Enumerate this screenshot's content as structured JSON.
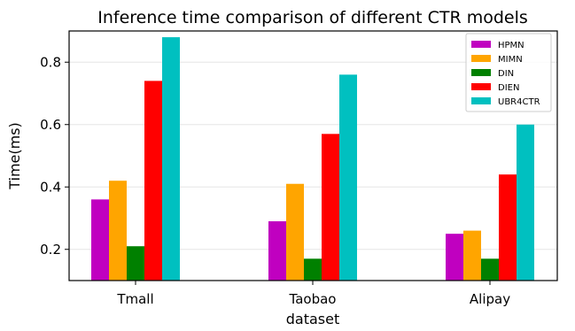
{
  "chart_data": {
    "type": "bar",
    "title": "Inference time comparison of different CTR models",
    "xlabel": "dataset",
    "ylabel": "Time(ms)",
    "categories": [
      "Tmall",
      "Taobao",
      "Alipay"
    ],
    "ylim": [
      0.1,
      0.9
    ],
    "yticks": [
      0.2,
      0.4,
      0.6,
      0.8
    ],
    "grid": true,
    "legend": "top-right",
    "series": [
      {
        "name": "HPMN",
        "color": "#c000c0",
        "values": [
          0.36,
          0.29,
          0.25
        ]
      },
      {
        "name": "MIMN",
        "color": "#ffa500",
        "values": [
          0.42,
          0.41,
          0.26
        ]
      },
      {
        "name": "DIN",
        "color": "#008000",
        "values": [
          0.21,
          0.17,
          0.17
        ]
      },
      {
        "name": "DIEN",
        "color": "#ff0000",
        "values": [
          0.74,
          0.57,
          0.44
        ]
      },
      {
        "name": "UBR4CTR",
        "color": "#00c0c0",
        "values": [
          0.88,
          0.76,
          0.6
        ]
      }
    ]
  }
}
